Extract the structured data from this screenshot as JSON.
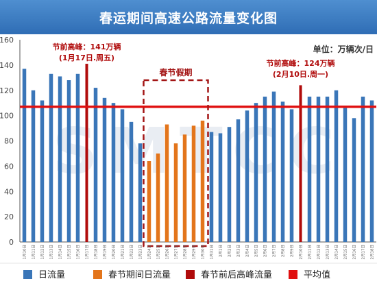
{
  "title": "春运期间高速公路流量变化图",
  "unit_label": "单位：万辆次/日",
  "watermark": "SMTCC",
  "colors": {
    "daily": "#3a76b8",
    "festival": "#e3751b",
    "peak": "#b00b0b",
    "average": "#e01010",
    "box": "#a31515",
    "annotation": "#b00b0b",
    "title_bg": "#3b7cc4"
  },
  "chart_data": {
    "type": "bar",
    "ylim": [
      0,
      160
    ],
    "yticks": [
      0,
      20,
      40,
      60,
      80,
      100,
      120,
      140,
      160
    ],
    "categories": [
      "1月10日",
      "1月11日",
      "1月12日",
      "1月13日",
      "1月14日",
      "1月15日",
      "1月16日",
      "1月17日",
      "1月18日",
      "1月19日",
      "1月20日",
      "1月21日",
      "1月22日",
      "1月23日",
      "1月24日",
      "1月25日",
      "1月26日",
      "1月27日",
      "1月28日",
      "1月29日",
      "1月30日",
      "1月31日",
      "2月1日",
      "2月2日",
      "2月3日",
      "2月4日",
      "2月5日",
      "2月6日",
      "2月7日",
      "2月8日",
      "2月9日",
      "2月10日",
      "2月11日",
      "2月12日",
      "2月13日",
      "2月14日",
      "2月15日",
      "2月16日",
      "2月17日",
      "2月18日"
    ],
    "values": [
      137,
      120,
      112,
      133,
      131,
      128,
      133,
      141,
      122,
      114,
      110,
      105,
      95,
      78,
      64,
      70,
      93,
      78,
      85,
      92,
      96,
      87,
      86,
      91,
      97,
      104,
      110,
      115,
      119,
      111,
      105,
      124,
      115,
      115,
      115,
      120,
      106,
      98,
      115,
      112
    ],
    "kinds": [
      "daily",
      "daily",
      "daily",
      "daily",
      "daily",
      "daily",
      "daily",
      "peak",
      "daily",
      "daily",
      "daily",
      "daily",
      "daily",
      "daily",
      "festival",
      "festival",
      "festival",
      "festival",
      "festival",
      "festival",
      "festival",
      "daily",
      "daily",
      "daily",
      "daily",
      "daily",
      "daily",
      "daily",
      "daily",
      "daily",
      "daily",
      "peak",
      "daily",
      "daily",
      "daily",
      "daily",
      "daily",
      "daily",
      "daily",
      "daily"
    ],
    "average": 107,
    "festival_box": {
      "label": "春节假期",
      "from": "1月24日",
      "to": "1月30日"
    },
    "annotations": [
      {
        "category": "1月17日",
        "line1": "节前高峰：141万辆",
        "line2": "(1月17日.周五)"
      },
      {
        "category": "2月10日",
        "line1": "节前高峰：124万辆",
        "line2": "(2月10日.周一)"
      }
    ],
    "legend": [
      {
        "key": "daily",
        "label": "日流量"
      },
      {
        "key": "festival",
        "label": "春节期间日流量"
      },
      {
        "key": "peak",
        "label": "春节前后高峰流量"
      },
      {
        "key": "average",
        "label": "平均值"
      }
    ]
  }
}
